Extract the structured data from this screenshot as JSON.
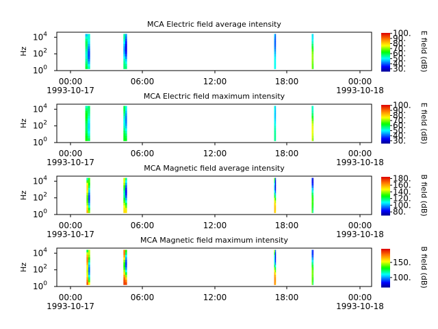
{
  "chart_data": [
    {
      "type": "heatmap",
      "title": "MCA  Electric field average intensity",
      "ylabel": "Hz",
      "colorbar_label": "E field (dB)",
      "colorbar_range": [
        25,
        101
      ],
      "colorbar_ticks": [
        "30.",
        "40.",
        "50.",
        "60.",
        "70.",
        "80.",
        "90.",
        "100."
      ],
      "y_scale": "log",
      "ylim": [
        1,
        40000
      ],
      "y_ticks": [
        {
          "base": "10",
          "exp": "0",
          "value": 1
        },
        {
          "base": "10",
          "exp": "2",
          "value": 100
        },
        {
          "base": "10",
          "exp": "4",
          "value": 10000
        }
      ],
      "x_ticks": [
        {
          "time": "00:00",
          "date": "1993-10-17"
        },
        {
          "time": "06:00",
          "date": ""
        },
        {
          "time": "12:00",
          "date": ""
        },
        {
          "time": "18:00",
          "date": ""
        },
        {
          "time": "00:00",
          "date": "1993-10-18"
        }
      ],
      "xlim_hours": [
        -1,
        25
      ],
      "intervals": [
        {
          "start_hour": 1.35,
          "end_hour": 1.75,
          "low_db": 35,
          "high_db": 58
        },
        {
          "start_hour": 4.5,
          "end_hour": 4.8,
          "low_db": 30,
          "high_db": 55
        },
        {
          "start_hour": 16.95,
          "end_hour": 17.1,
          "low_db": 38,
          "high_db": 50
        },
        {
          "start_hour": 20.05,
          "end_hour": 20.2,
          "low_db": 48,
          "high_db": 70
        }
      ]
    },
    {
      "type": "heatmap",
      "title": "MCA  Electric field maximum intensity",
      "ylabel": "Hz",
      "colorbar_label": "E field (dB)",
      "colorbar_range": [
        25,
        101
      ],
      "colorbar_ticks": [
        "30.",
        "40.",
        "50.",
        "60.",
        "70.",
        "80.",
        "90.",
        "100."
      ],
      "y_scale": "log",
      "ylim": [
        1,
        40000
      ],
      "y_ticks": [
        {
          "base": "10",
          "exp": "0",
          "value": 1
        },
        {
          "base": "10",
          "exp": "2",
          "value": 100
        },
        {
          "base": "10",
          "exp": "4",
          "value": 10000
        }
      ],
      "x_ticks": [
        {
          "time": "00:00",
          "date": "1993-10-17"
        },
        {
          "time": "06:00",
          "date": ""
        },
        {
          "time": "12:00",
          "date": ""
        },
        {
          "time": "18:00",
          "date": ""
        },
        {
          "time": "00:00",
          "date": "1993-10-18"
        }
      ],
      "xlim_hours": [
        -1,
        25
      ],
      "intervals": [
        {
          "start_hour": 1.35,
          "end_hour": 1.75,
          "low_db": 45,
          "high_db": 62
        },
        {
          "start_hour": 4.5,
          "end_hour": 4.8,
          "low_db": 40,
          "high_db": 60
        },
        {
          "start_hour": 16.95,
          "end_hour": 17.1,
          "low_db": 45,
          "high_db": 55
        },
        {
          "start_hour": 20.05,
          "end_hour": 20.2,
          "low_db": 52,
          "high_db": 75
        }
      ]
    },
    {
      "type": "heatmap",
      "title": "MCA  Magnetic field average intensity",
      "ylabel": "Hz",
      "colorbar_label": "B field (dB)",
      "colorbar_range": [
        70,
        185
      ],
      "colorbar_ticks": [
        "80.",
        "100.",
        "120.",
        "140.",
        "160.",
        "180."
      ],
      "y_scale": "log",
      "ylim": [
        1,
        40000
      ],
      "y_ticks": [
        {
          "base": "10",
          "exp": "0",
          "value": 1
        },
        {
          "base": "10",
          "exp": "2",
          "value": 100
        },
        {
          "base": "10",
          "exp": "4",
          "value": 10000
        }
      ],
      "x_ticks": [
        {
          "time": "00:00",
          "date": "1993-10-17"
        },
        {
          "time": "06:00",
          "date": ""
        },
        {
          "time": "12:00",
          "date": ""
        },
        {
          "time": "18:00",
          "date": ""
        },
        {
          "time": "00:00",
          "date": "1993-10-18"
        }
      ],
      "xlim_hours": [
        -1,
        25
      ],
      "intervals": [
        {
          "start_hour": 1.45,
          "end_hour": 1.75,
          "low_db": 78,
          "high_db": 150
        },
        {
          "start_hour": 4.5,
          "end_hour": 4.8,
          "low_db": 78,
          "high_db": 145
        },
        {
          "start_hour": 16.95,
          "end_hour": 17.1,
          "low_db": 76,
          "high_db": 150
        },
        {
          "start_hour": 20.05,
          "end_hour": 20.2,
          "low_db": 80,
          "high_db": 130
        }
      ]
    },
    {
      "type": "heatmap",
      "title": "MCA  Magnetic field maximum intensity",
      "ylabel": "Hz",
      "colorbar_label": "B field (dB)",
      "colorbar_range": [
        68,
        195
      ],
      "colorbar_ticks": [
        "100.",
        "150."
      ],
      "y_scale": "log",
      "ylim": [
        1,
        40000
      ],
      "y_ticks": [
        {
          "base": "10",
          "exp": "0",
          "value": 1
        },
        {
          "base": "10",
          "exp": "2",
          "value": 100
        },
        {
          "base": "10",
          "exp": "4",
          "value": 10000
        }
      ],
      "x_ticks": [
        {
          "time": "00:00",
          "date": "1993-10-17"
        },
        {
          "time": "06:00",
          "date": ""
        },
        {
          "time": "12:00",
          "date": ""
        },
        {
          "time": "18:00",
          "date": ""
        },
        {
          "time": "00:00",
          "date": "1993-10-18"
        }
      ],
      "xlim_hours": [
        -1,
        25
      ],
      "intervals": [
        {
          "start_hour": 1.45,
          "end_hour": 1.75,
          "low_db": 80,
          "high_db": 170
        },
        {
          "start_hour": 4.5,
          "end_hour": 4.8,
          "low_db": 80,
          "high_db": 175
        },
        {
          "start_hour": 16.95,
          "end_hour": 17.1,
          "low_db": 78,
          "high_db": 165
        },
        {
          "start_hour": 20.05,
          "end_hour": 20.2,
          "low_db": 85,
          "high_db": 140
        }
      ]
    }
  ]
}
